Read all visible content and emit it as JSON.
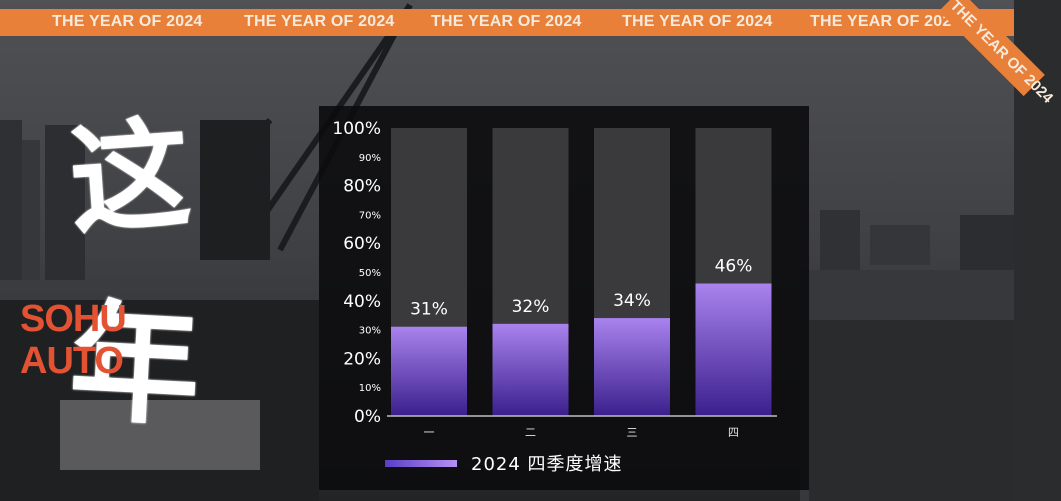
{
  "banner": {
    "repeat_text": "THE YEAR OF 2024",
    "corner_text": "THE YEAR OF 2024",
    "color": "#e8803a"
  },
  "title_art": {
    "char_1": "这",
    "char_2": "年",
    "logo_line_1": "SOHU",
    "logo_line_2": "AUTO",
    "logo_color": "#e35232"
  },
  "chart_data": {
    "type": "bar",
    "categories": [
      "一",
      "二",
      "三",
      "四"
    ],
    "series": [
      {
        "name": "2024 四季度增速",
        "values": [
          31,
          32,
          34,
          46
        ]
      }
    ],
    "data_labels": [
      "31%",
      "32%",
      "34%",
      "46%"
    ],
    "ylim": [
      0,
      100
    ],
    "y_major_ticks": [
      "0%",
      "20%",
      "40%",
      "60%",
      "80%",
      "100%"
    ],
    "y_minor_ticks": [
      "10%",
      "30%",
      "50%",
      "70%",
      "90%"
    ],
    "legend_position": "bottom-left",
    "bar_color_top": "#a983ee",
    "bar_color_bottom": "#3a1f8c",
    "track_color": "#3a3a3d"
  }
}
